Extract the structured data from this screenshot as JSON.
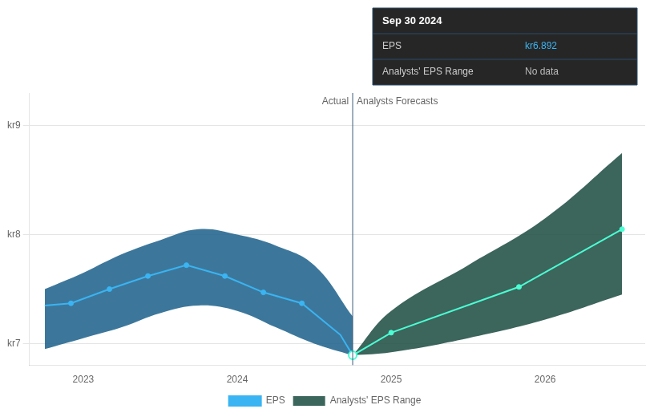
{
  "chart_data": {
    "type": "line",
    "xlim": [
      2022.65,
      2026.65
    ],
    "xticks": [
      2023,
      2024,
      2025,
      2026
    ],
    "ylim": [
      6.8,
      9.3
    ],
    "yticks": [
      {
        "value": 7.0,
        "label": "kr7"
      },
      {
        "value": 8.0,
        "label": "kr8"
      },
      {
        "value": 9.0,
        "label": "kr9"
      }
    ],
    "grid": "y",
    "legend": "bottom",
    "divider": {
      "x": 2024.75,
      "color": "#3a5a7a"
    },
    "annotations": [
      "Actual",
      "Analysts Forecasts"
    ],
    "tooltip": {
      "title": "Sep 30 2024",
      "rows": [
        {
          "label": "EPS",
          "value": "kr6.892"
        },
        {
          "label": "Analysts' EPS Range",
          "value": "No data"
        }
      ]
    },
    "series": [
      {
        "type": "band",
        "color": "#1a5f8a",
        "x": [
          2022.75,
          2023.0,
          2023.25,
          2023.5,
          2023.75,
          2024.0,
          2024.25,
          2024.5,
          2024.75
        ],
        "values": [
          7.5,
          7.65,
          7.82,
          7.95,
          8.05,
          8.0,
          7.9,
          7.72,
          7.25
        ],
        "lower": [
          6.95,
          7.05,
          7.15,
          7.28,
          7.35,
          7.3,
          7.15,
          7.0,
          6.892
        ]
      },
      {
        "name": "EPS",
        "type": "line",
        "color": "#3ab4f2",
        "x": [
          2022.75,
          2022.92,
          2023.17,
          2023.42,
          2023.67,
          2023.92,
          2024.17,
          2024.42,
          2024.67,
          2024.75
        ],
        "values": [
          7.35,
          7.37,
          7.5,
          7.62,
          7.72,
          7.62,
          7.47,
          7.37,
          7.08,
          6.892
        ]
      },
      {
        "type": "scatter",
        "color": "#3ab4f2",
        "marker": "circle",
        "x": [
          2022.92,
          2023.17,
          2023.42,
          2023.67,
          2023.92,
          2024.17,
          2024.42
        ],
        "values": [
          7.37,
          7.5,
          7.62,
          7.72,
          7.62,
          7.47,
          7.37
        ]
      },
      {
        "name": "Analysts' EPS Range",
        "type": "band",
        "color": "#1a4a40",
        "x": [
          2024.75,
          2025.0,
          2025.5,
          2026.0,
          2026.5
        ],
        "values": [
          6.892,
          7.3,
          7.72,
          8.15,
          8.75
        ],
        "lower": [
          6.892,
          6.92,
          7.05,
          7.22,
          7.45
        ]
      },
      {
        "type": "line",
        "color": "#4affd4",
        "x": [
          2024.75,
          2025.0,
          2025.83,
          2026.5
        ],
        "values": [
          6.892,
          7.1,
          7.52,
          8.05
        ]
      },
      {
        "type": "scatter",
        "color": "#4affd4",
        "marker": "circle",
        "x": [
          2025.0,
          2025.83,
          2026.5
        ],
        "values": [
          7.1,
          7.52,
          8.05
        ]
      },
      {
        "type": "scatter",
        "color": "#4affd4",
        "marker": "circle_open",
        "x": [
          2024.75
        ],
        "values": [
          6.892
        ]
      }
    ]
  }
}
